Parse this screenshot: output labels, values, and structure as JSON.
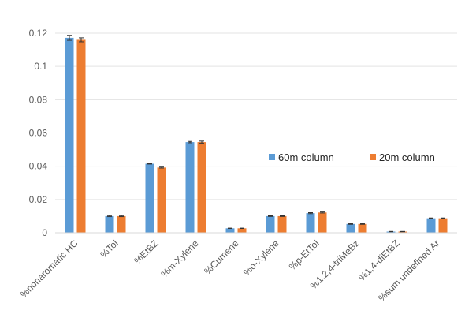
{
  "chart_data": {
    "type": "bar",
    "title": "",
    "xlabel": "",
    "ylabel": "",
    "ylim": [
      0,
      0.12
    ],
    "yticks": [
      0,
      0.02,
      0.04,
      0.06,
      0.08,
      0.1,
      0.12
    ],
    "ytick_labels": [
      "0",
      "0.02",
      "0.04",
      "0.06",
      "0.08",
      "0.1",
      "0.12"
    ],
    "grid": true,
    "legend_position": "center-right",
    "categories": [
      "%nonaromatic HC",
      "%Tol",
      "%EtBZ",
      "%m-Xylene",
      "%Cumene",
      "%o-Xylene",
      "%p-EtTol",
      "%1,2,4-triMeBz",
      "%1,4-diEtBZ",
      "%sum undefined Ar"
    ],
    "series": [
      {
        "name": "60m column",
        "color": "#5B9BD5",
        "values": [
          0.1172,
          0.01,
          0.0415,
          0.0545,
          0.0027,
          0.01,
          0.0118,
          0.0053,
          0.0007,
          0.0087
        ],
        "errors": [
          0.0015,
          0.0003,
          0.0002,
          0.0004,
          0.0001,
          0.0002,
          0.0003,
          0.0002,
          0.0001,
          0.0002
        ]
      },
      {
        "name": "20m column",
        "color": "#ED7D31",
        "values": [
          0.116,
          0.01,
          0.0392,
          0.0545,
          0.0027,
          0.01,
          0.0122,
          0.0053,
          0.0007,
          0.0087
        ],
        "errors": [
          0.0012,
          0.0003,
          0.0003,
          0.0006,
          0.0001,
          0.0002,
          0.0003,
          0.0002,
          0.0001,
          0.0002
        ]
      }
    ]
  }
}
